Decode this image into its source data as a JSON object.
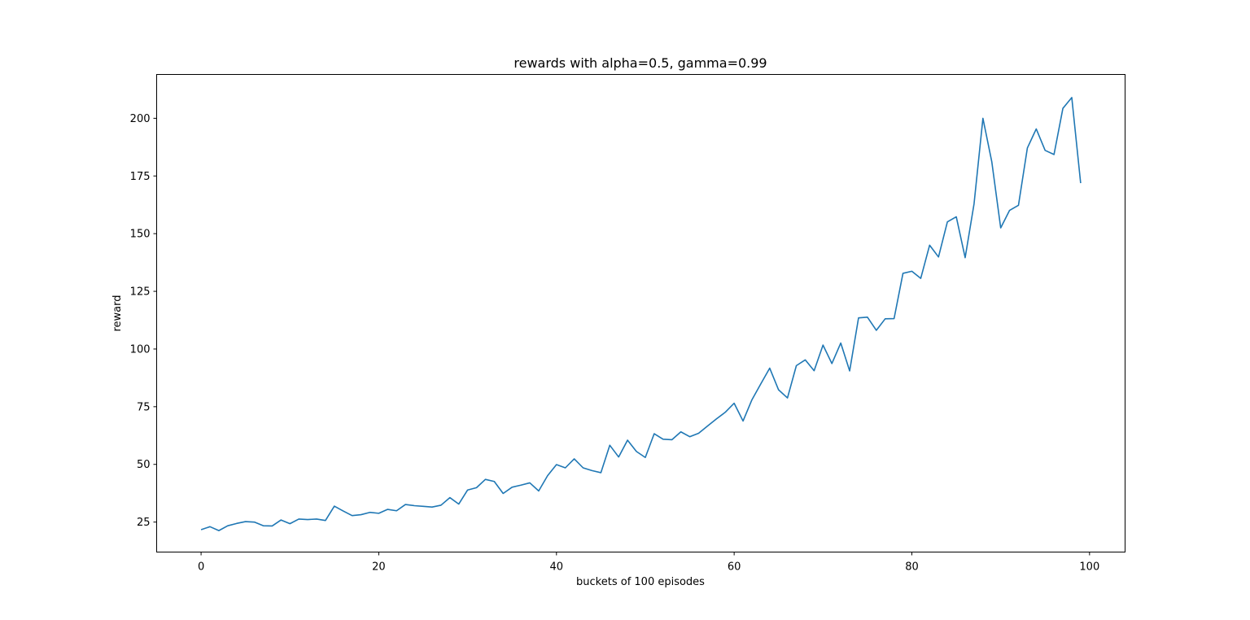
{
  "chart_data": {
    "type": "line",
    "title": "rewards with alpha=0.5, gamma=0.99",
    "xlabel": "buckets of 100 episodes",
    "ylabel": "reward",
    "xlim": [
      -5,
      104
    ],
    "ylim": [
      12,
      219
    ],
    "xticks": [
      0,
      20,
      40,
      60,
      80,
      100
    ],
    "yticks": [
      25,
      50,
      75,
      100,
      125,
      150,
      175,
      200
    ],
    "grid": false,
    "series": [
      {
        "color": "#1f77b4",
        "x": [
          0,
          1,
          2,
          3,
          4,
          5,
          6,
          7,
          8,
          9,
          10,
          11,
          12,
          13,
          14,
          15,
          16,
          17,
          18,
          19,
          20,
          21,
          22,
          23,
          24,
          25,
          26,
          27,
          28,
          29,
          30,
          31,
          32,
          33,
          34,
          35,
          36,
          37,
          38,
          39,
          40,
          41,
          42,
          43,
          44,
          45,
          46,
          47,
          48,
          49,
          50,
          51,
          52,
          53,
          54,
          55,
          56,
          57,
          58,
          59,
          60,
          61,
          62,
          63,
          64,
          65,
          66,
          67,
          68,
          69,
          70,
          71,
          72,
          73,
          74,
          75,
          76,
          77,
          78,
          79,
          80,
          81,
          82,
          83,
          84,
          85,
          86,
          87,
          88,
          89,
          90,
          91,
          92,
          93,
          94,
          95,
          96,
          97,
          98,
          99
        ],
        "values": [
          21.7,
          23.0,
          21.3,
          23.4,
          24.4,
          25.2,
          25.0,
          23.4,
          23.3,
          25.9,
          24.3,
          26.3,
          26.1,
          26.3,
          25.7,
          31.9,
          29.8,
          27.8,
          28.2,
          29.2,
          28.8,
          30.5,
          29.9,
          32.6,
          32.1,
          31.8,
          31.5,
          32.3,
          35.6,
          32.8,
          38.9,
          39.9,
          43.5,
          42.6,
          37.4,
          40.1,
          41.0,
          42.0,
          38.5,
          45.1,
          49.9,
          48.5,
          52.4,
          48.5,
          47.3,
          46.4,
          58.3,
          53.2,
          60.5,
          55.6,
          53.0,
          63.3,
          60.9,
          60.7,
          64.1,
          62.0,
          63.5,
          66.6,
          69.7,
          72.6,
          76.5,
          68.8,
          78.0,
          84.9,
          91.7,
          82.3,
          78.8,
          92.8,
          95.3,
          90.6,
          101.7,
          93.7,
          102.6,
          90.5,
          113.5,
          113.8,
          108.1,
          113.1,
          113.2,
          132.8,
          133.7,
          130.6,
          145.0,
          139.9,
          155.1,
          157.3,
          139.6,
          162.9,
          200.0,
          181.1,
          152.5,
          160.1,
          162.3,
          187.1,
          195.4,
          186.1,
          184.3,
          204.3,
          209.0,
          171.9
        ]
      }
    ]
  }
}
